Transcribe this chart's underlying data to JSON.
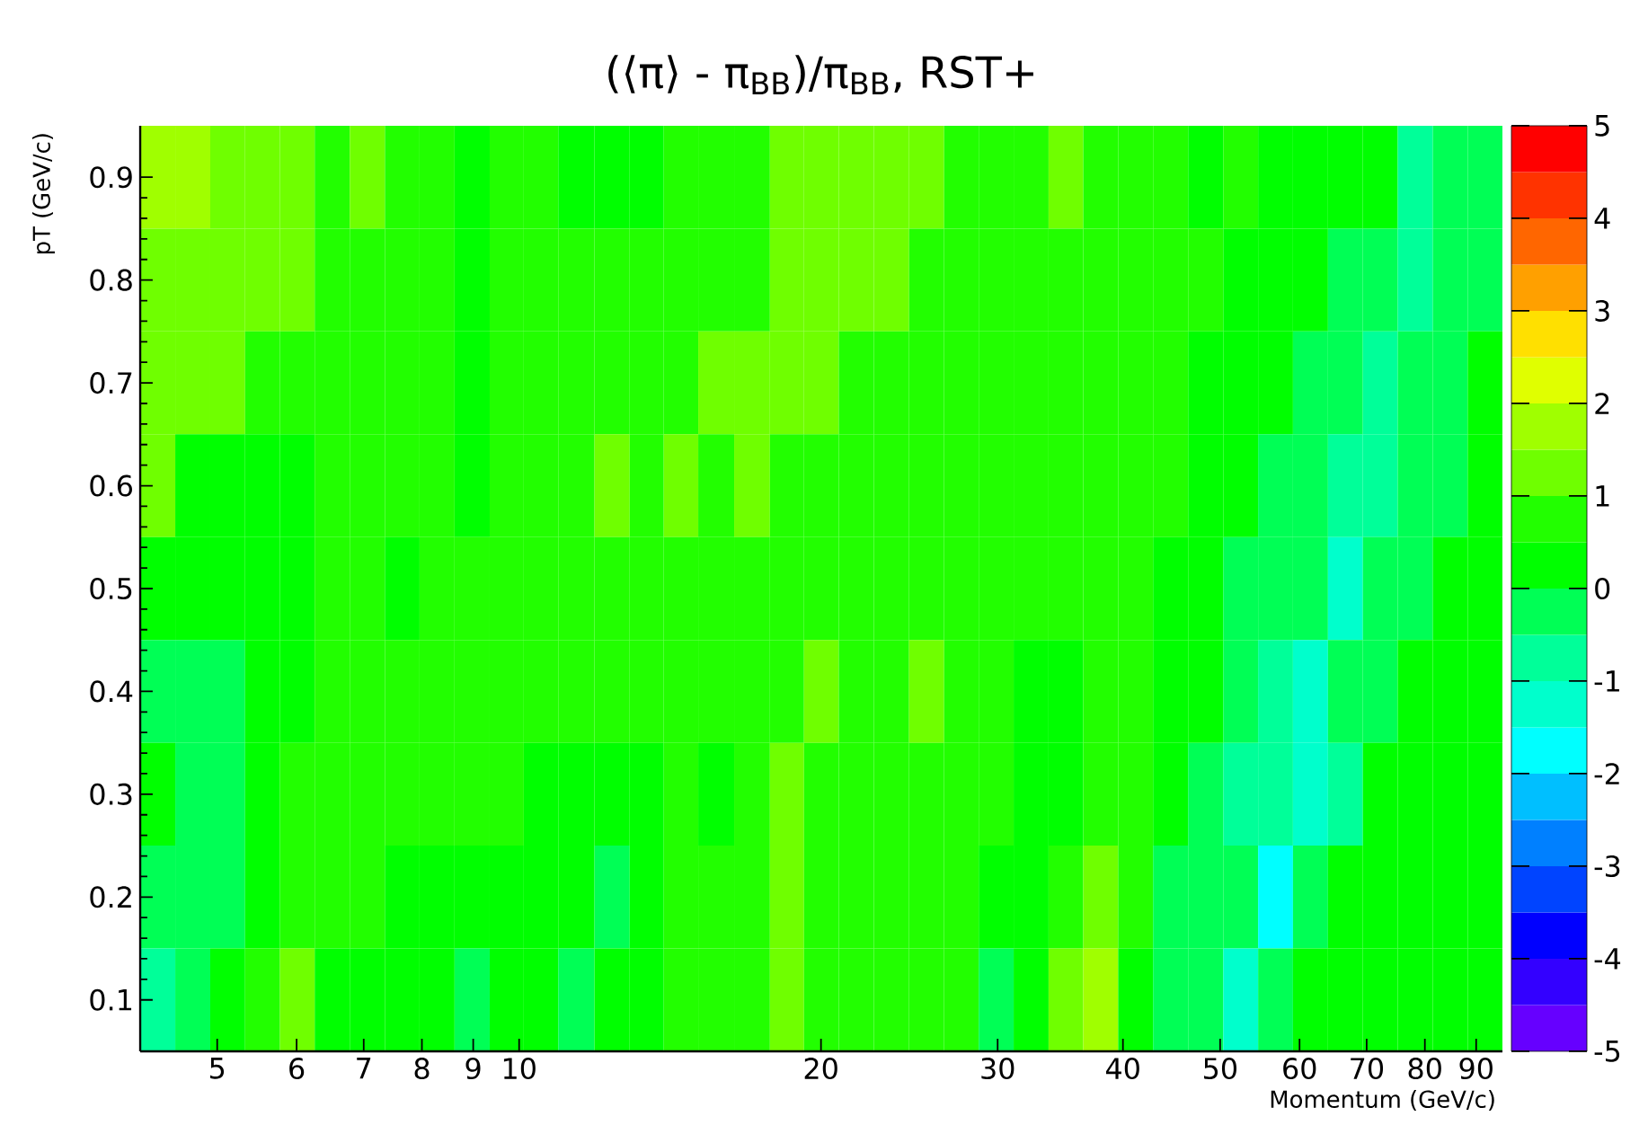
{
  "chart_data": {
    "type": "heatmap",
    "title": "(⟨π⟩ - π$_{BB}$)/π$_{BB}$,  RST+",
    "xlabel": "Momentum (GeV/c)",
    "ylabel": "pT (GeV/c)",
    "x": [
      4.36,
      4.73,
      5.12,
      5.55,
      6.01,
      6.51,
      7.06,
      7.65,
      8.28,
      8.98,
      9.73,
      10.5,
      11.4,
      12.4,
      13.4,
      14.5,
      15.7,
      17.1,
      18.5,
      20.0,
      21.7,
      23.5,
      25.5,
      27.6,
      29.9,
      32.4,
      35.1,
      38.0,
      41.2,
      44.6,
      48.4,
      52.4,
      56.8,
      61.5,
      66.7,
      72.2,
      78.3,
      84.8,
      91.9
    ],
    "y": [
      0.9,
      0.8,
      0.7,
      0.6,
      0.5,
      0.4,
      0.3,
      0.2,
      0.1
    ],
    "cells": [
      [
        1.75,
        1.75,
        1.25,
        1.25,
        1.25,
        0.75,
        1.25,
        0.75,
        0.75,
        0.25,
        0.75,
        0.75,
        0.25,
        0.25,
        0.25,
        0.75,
        0.75,
        0.75,
        1.25,
        1.25,
        1.25,
        1.25,
        1.25,
        0.75,
        0.75,
        0.75,
        1.25,
        0.75,
        0.75,
        0.75,
        0.25,
        0.75,
        0.25,
        0.25,
        0.25,
        0.25,
        -0.75,
        -0.25,
        -0.25
      ],
      [
        1.25,
        1.25,
        1.25,
        1.25,
        1.25,
        0.75,
        0.75,
        0.75,
        0.75,
        0.25,
        0.75,
        0.75,
        0.75,
        0.75,
        0.75,
        0.75,
        0.75,
        0.75,
        1.25,
        1.25,
        1.25,
        1.25,
        0.75,
        0.75,
        0.75,
        0.75,
        0.75,
        0.75,
        0.75,
        0.75,
        0.75,
        0.25,
        0.25,
        0.25,
        -0.25,
        -0.25,
        -0.75,
        -0.25,
        -0.25
      ],
      [
        1.25,
        1.25,
        1.25,
        0.75,
        0.75,
        0.75,
        0.75,
        0.75,
        0.75,
        0.25,
        0.75,
        0.75,
        0.75,
        0.75,
        0.75,
        0.75,
        1.25,
        1.25,
        1.25,
        1.25,
        0.75,
        0.75,
        0.75,
        0.75,
        0.75,
        0.75,
        0.75,
        0.75,
        0.75,
        0.75,
        0.25,
        0.25,
        0.25,
        -0.25,
        -0.25,
        -0.75,
        -0.25,
        -0.25,
        0.25
      ],
      [
        1.25,
        0.25,
        0.25,
        0.25,
        0.25,
        0.75,
        0.75,
        0.75,
        0.75,
        0.25,
        0.75,
        0.75,
        0.75,
        1.25,
        0.75,
        1.25,
        0.75,
        1.25,
        0.75,
        0.75,
        0.75,
        0.75,
        0.75,
        0.75,
        0.75,
        0.75,
        0.75,
        0.75,
        0.75,
        0.75,
        0.25,
        0.25,
        -0.25,
        -0.25,
        -0.75,
        -0.75,
        -0.25,
        -0.25,
        0.25
      ],
      [
        0.25,
        0.25,
        0.25,
        0.25,
        0.25,
        0.75,
        0.75,
        0.25,
        0.75,
        0.75,
        0.75,
        0.75,
        0.75,
        0.75,
        0.75,
        0.75,
        0.75,
        0.75,
        0.75,
        0.75,
        0.75,
        0.75,
        0.75,
        0.75,
        0.75,
        0.75,
        0.75,
        0.75,
        0.75,
        0.25,
        0.25,
        -0.25,
        -0.25,
        -0.25,
        -1.25,
        -0.25,
        -0.25,
        0.25,
        0.25
      ],
      [
        -0.25,
        -0.25,
        -0.25,
        0.25,
        0.25,
        0.75,
        0.75,
        0.75,
        0.75,
        0.75,
        0.75,
        0.75,
        0.75,
        0.75,
        0.75,
        0.75,
        0.75,
        0.75,
        0.75,
        1.25,
        0.75,
        0.75,
        1.25,
        0.75,
        0.75,
        0.25,
        0.25,
        0.75,
        0.75,
        0.25,
        0.25,
        -0.25,
        -0.75,
        -1.25,
        -0.25,
        -0.25,
        0.25,
        0.25,
        0.25
      ],
      [
        0.25,
        -0.25,
        -0.25,
        0.25,
        0.75,
        0.75,
        0.75,
        0.75,
        0.75,
        0.75,
        0.75,
        0.25,
        0.25,
        0.25,
        0.25,
        0.75,
        0.25,
        0.75,
        1.25,
        0.75,
        0.75,
        0.75,
        0.75,
        0.75,
        0.75,
        0.25,
        0.25,
        0.75,
        0.75,
        0.25,
        -0.25,
        -0.75,
        -0.75,
        -1.25,
        -0.75,
        0.25,
        0.25,
        0.25,
        0.25
      ],
      [
        -0.25,
        -0.25,
        -0.25,
        0.25,
        0.75,
        0.75,
        0.75,
        0.25,
        0.25,
        0.25,
        0.25,
        0.25,
        0.25,
        -0.25,
        0.25,
        0.75,
        0.75,
        0.75,
        1.25,
        0.75,
        0.75,
        0.75,
        0.75,
        0.75,
        0.25,
        0.25,
        0.75,
        1.25,
        0.75,
        -0.25,
        -0.25,
        -0.25,
        -1.75,
        -0.25,
        0.25,
        0.25,
        0.25,
        0.25,
        0.25
      ],
      [
        -0.75,
        -0.25,
        0.25,
        0.75,
        1.25,
        0.25,
        0.25,
        0.25,
        0.25,
        -0.25,
        0.25,
        0.25,
        -0.25,
        0.25,
        0.25,
        0.75,
        0.75,
        0.75,
        1.25,
        0.75,
        0.75,
        0.75,
        0.75,
        0.75,
        -0.25,
        0.25,
        1.25,
        1.75,
        0.25,
        -0.25,
        -0.25,
        -1.25,
        -0.25,
        0.25,
        0.25,
        0.25,
        0.25,
        0.25,
        0.25
      ]
    ],
    "log": "x",
    "xlim": [
      4.19,
      95.6
    ],
    "ylim": [
      0.05,
      0.95
    ],
    "xticks": [
      5,
      6,
      7,
      8,
      9,
      10,
      20,
      30,
      40,
      50,
      60,
      70,
      80,
      90
    ],
    "yticks": [
      0.1,
      0.2,
      0.3,
      0.4,
      0.5,
      0.6,
      0.7,
      0.8,
      0.9
    ],
    "clim": [
      -5,
      5
    ],
    "cticks": [
      -5,
      -4,
      -3,
      -2,
      -1,
      0,
      1,
      2,
      3,
      4,
      5
    ]
  }
}
